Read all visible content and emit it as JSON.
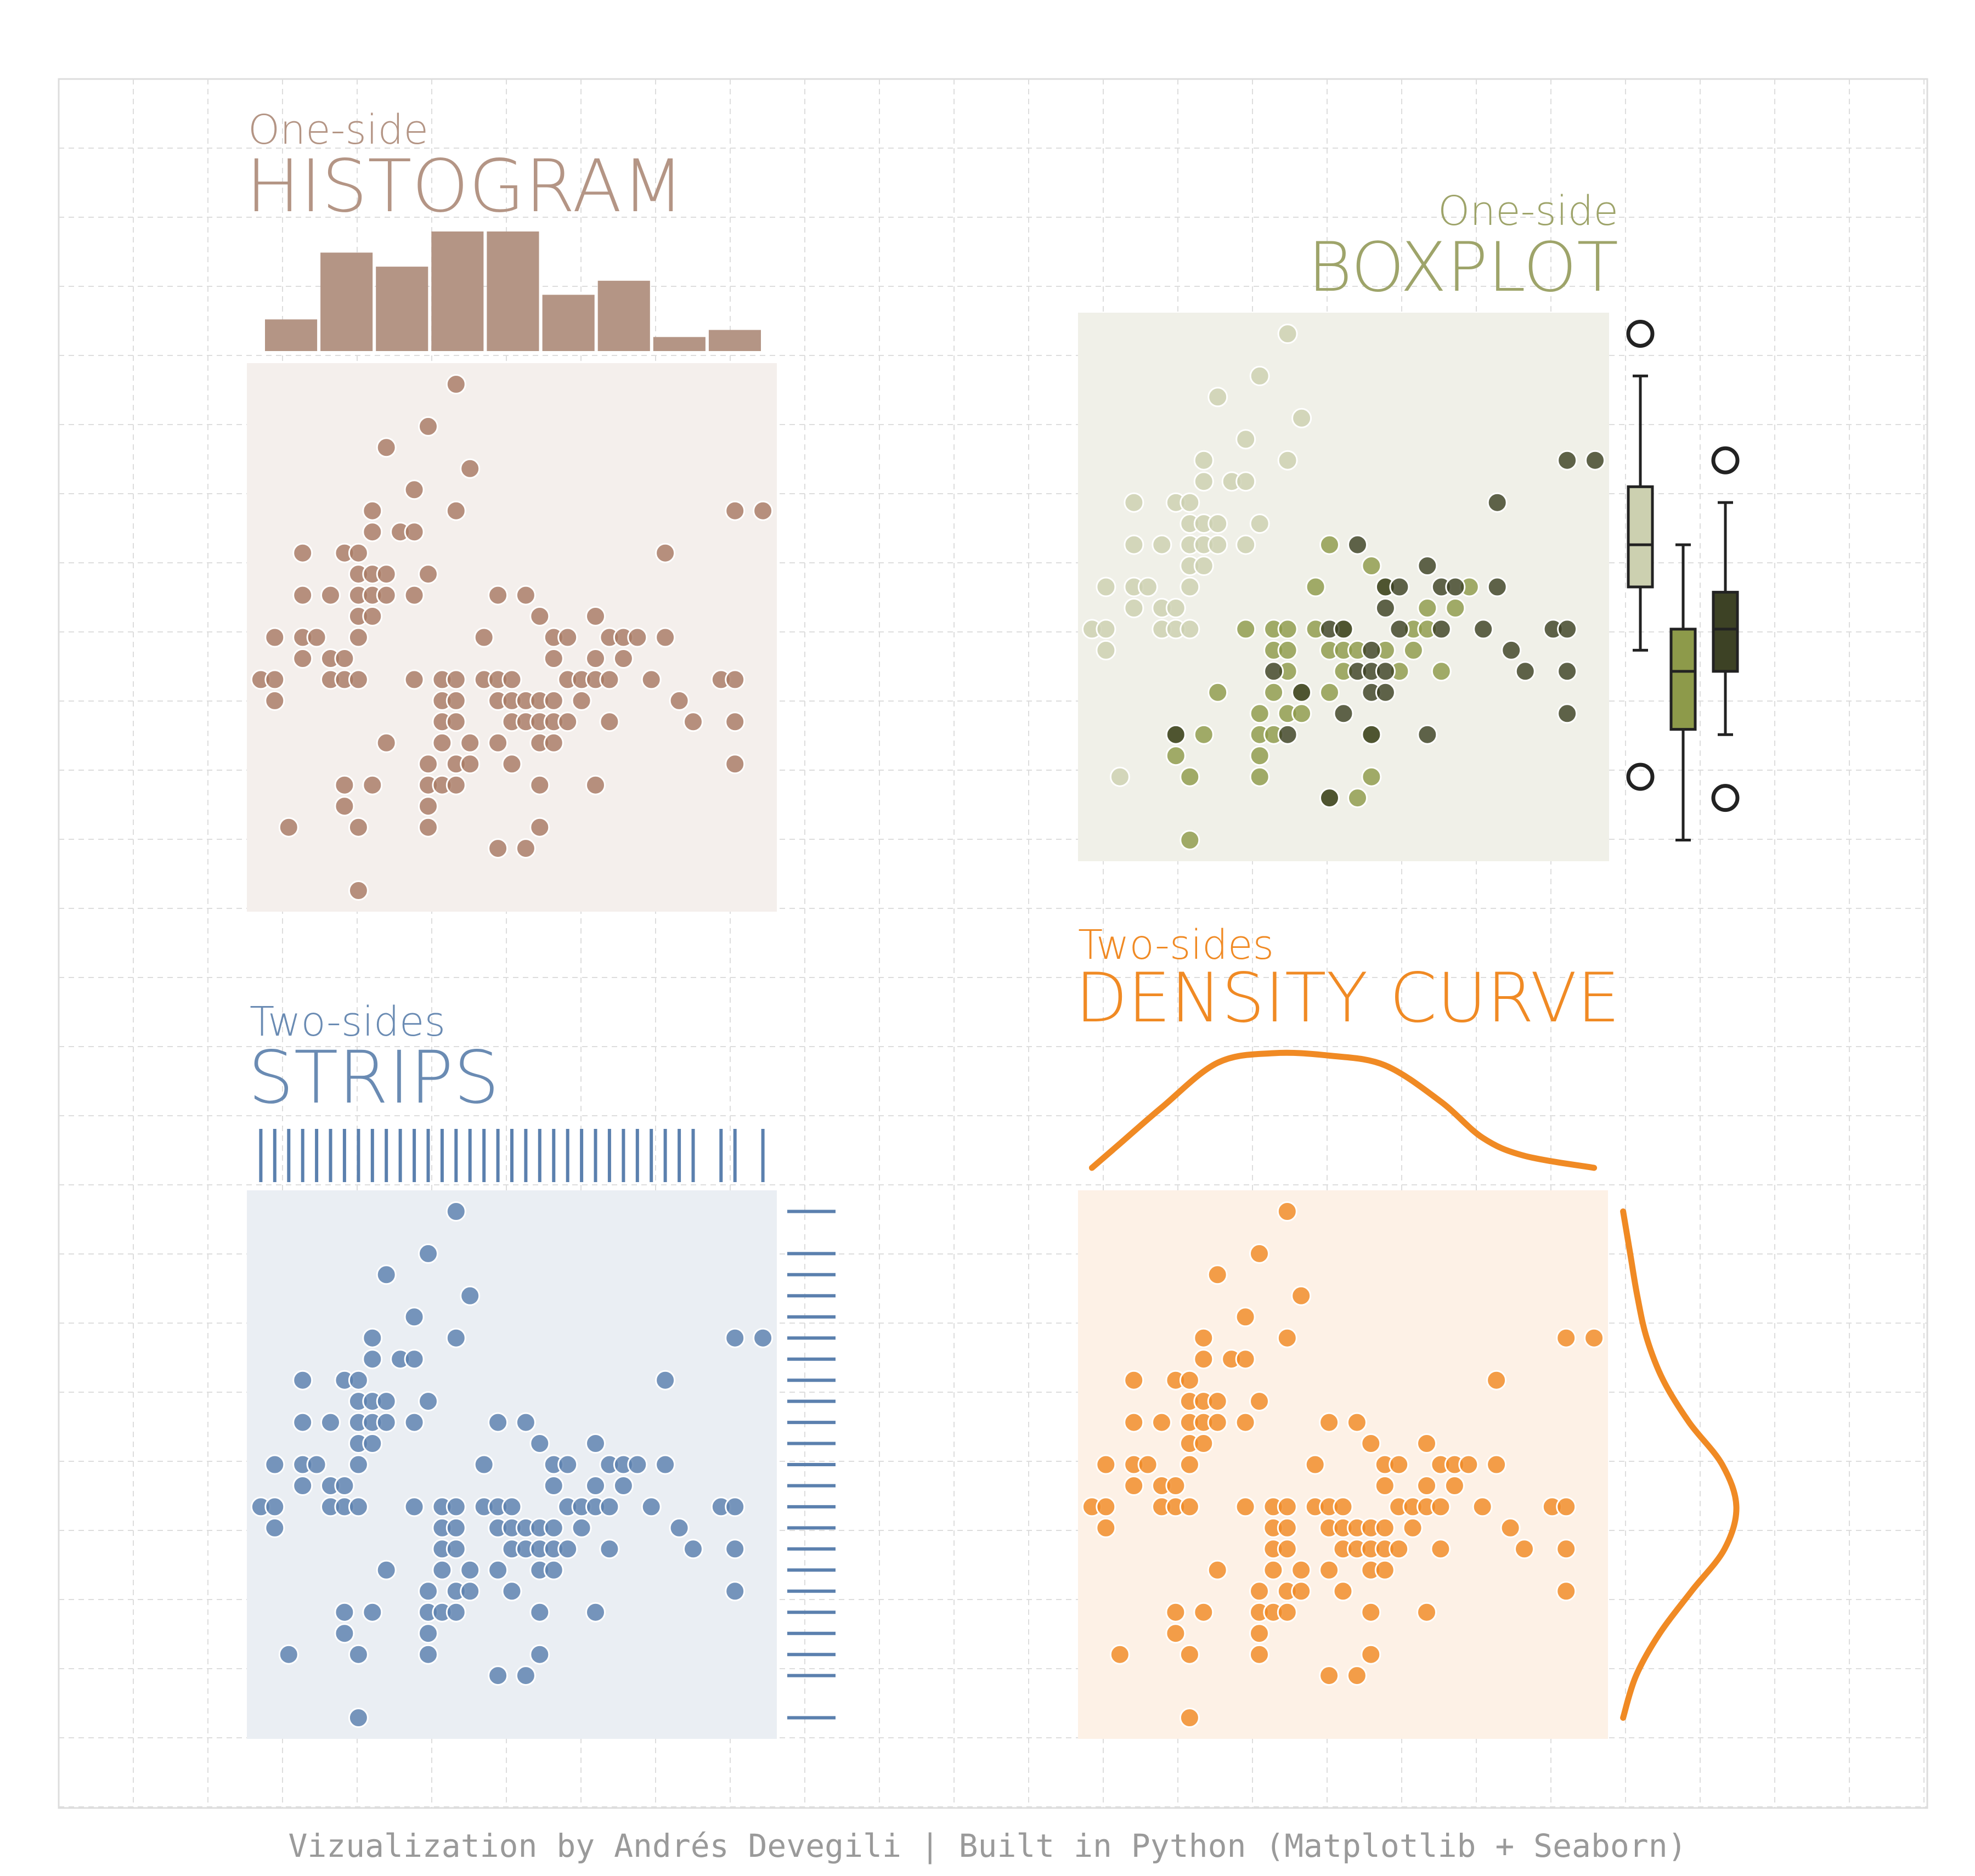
{
  "footer": "Vizualization by Andrés Devegili | Built in Python (Matplotlib + Seaborn)",
  "palette": {
    "histogram": "#b49585",
    "histogram_dot": "#a87a64",
    "histogram_bg": "#f4efec",
    "boxplot_title": "#9ea46a",
    "boxplot_bg": "#f0f0e8",
    "group_light": "#ccd0b0",
    "group_mid": "#8d9a4a",
    "group_dark": "#3d4225",
    "strips": "#5b80ae",
    "strips_dot": "#5b80ae",
    "strips_bg": "#eaeef3",
    "density": "#f08a24",
    "density_bg": "#fdf1e6",
    "grid": "#dddddd"
  },
  "panels": {
    "histogram": {
      "subtitle": "One-side",
      "title": "HISTOGRAM"
    },
    "boxplot": {
      "subtitle": "One-side",
      "title": "BOXPLOT"
    },
    "strips": {
      "subtitle": "Two-sides",
      "title": "STRIPS"
    },
    "density": {
      "subtitle": "Two-sides",
      "title": "DENSITY CURVE"
    }
  },
  "chart_data": [
    {
      "type": "scatter",
      "panel": "histogram",
      "marginal": "histogram-top",
      "xlim": [
        4.2,
        8.0
      ],
      "ylim": [
        1.9,
        4.5
      ],
      "hist_bins": 9,
      "hist_counts": [
        9,
        28,
        24,
        34,
        34,
        16,
        20,
        4,
        6
      ],
      "points": [
        [
          4.3,
          3.0
        ],
        [
          4.4,
          2.9
        ],
        [
          4.4,
          3.0
        ],
        [
          4.4,
          3.2
        ],
        [
          4.5,
          2.3
        ],
        [
          4.6,
          3.1
        ],
        [
          4.6,
          3.2
        ],
        [
          4.6,
          3.4
        ],
        [
          4.6,
          3.6
        ],
        [
          4.7,
          3.2
        ],
        [
          4.8,
          3.0
        ],
        [
          4.8,
          3.1
        ],
        [
          4.8,
          3.4
        ],
        [
          4.9,
          2.4
        ],
        [
          4.9,
          2.5
        ],
        [
          4.9,
          3.0
        ],
        [
          4.9,
          3.1
        ],
        [
          4.9,
          3.6
        ],
        [
          5.0,
          2.0
        ],
        [
          5.0,
          2.3
        ],
        [
          5.0,
          3.0
        ],
        [
          5.0,
          3.2
        ],
        [
          5.0,
          3.3
        ],
        [
          5.0,
          3.4
        ],
        [
          5.0,
          3.5
        ],
        [
          5.0,
          3.6
        ],
        [
          5.1,
          2.5
        ],
        [
          5.1,
          3.3
        ],
        [
          5.1,
          3.4
        ],
        [
          5.1,
          3.5
        ],
        [
          5.1,
          3.7
        ],
        [
          5.1,
          3.8
        ],
        [
          5.2,
          2.7
        ],
        [
          5.2,
          3.4
        ],
        [
          5.2,
          3.5
        ],
        [
          5.2,
          4.1
        ],
        [
          5.3,
          3.7
        ],
        [
          5.4,
          3.0
        ],
        [
          5.4,
          3.4
        ],
        [
          5.4,
          3.7
        ],
        [
          5.4,
          3.9
        ],
        [
          5.5,
          2.3
        ],
        [
          5.5,
          2.4
        ],
        [
          5.5,
          2.5
        ],
        [
          5.5,
          2.6
        ],
        [
          5.5,
          3.5
        ],
        [
          5.5,
          4.2
        ],
        [
          5.6,
          2.5
        ],
        [
          5.6,
          2.7
        ],
        [
          5.6,
          2.8
        ],
        [
          5.6,
          2.9
        ],
        [
          5.6,
          3.0
        ],
        [
          5.7,
          2.5
        ],
        [
          5.7,
          2.6
        ],
        [
          5.7,
          2.8
        ],
        [
          5.7,
          2.9
        ],
        [
          5.7,
          3.0
        ],
        [
          5.7,
          3.8
        ],
        [
          5.7,
          4.4
        ],
        [
          5.8,
          2.6
        ],
        [
          5.8,
          2.7
        ],
        [
          5.8,
          4.0
        ],
        [
          5.9,
          3.0
        ],
        [
          5.9,
          3.2
        ],
        [
          6.0,
          2.2
        ],
        [
          6.0,
          2.7
        ],
        [
          6.0,
          2.9
        ],
        [
          6.0,
          3.0
        ],
        [
          6.0,
          3.4
        ],
        [
          6.1,
          2.6
        ],
        [
          6.1,
          2.8
        ],
        [
          6.1,
          2.9
        ],
        [
          6.1,
          3.0
        ],
        [
          6.2,
          2.2
        ],
        [
          6.2,
          2.8
        ],
        [
          6.2,
          2.9
        ],
        [
          6.2,
          3.4
        ],
        [
          6.3,
          2.3
        ],
        [
          6.3,
          2.5
        ],
        [
          6.3,
          2.7
        ],
        [
          6.3,
          2.8
        ],
        [
          6.3,
          2.9
        ],
        [
          6.3,
          3.3
        ],
        [
          6.4,
          2.7
        ],
        [
          6.4,
          2.8
        ],
        [
          6.4,
          2.9
        ],
        [
          6.4,
          3.1
        ],
        [
          6.4,
          3.2
        ],
        [
          6.5,
          2.8
        ],
        [
          6.5,
          3.0
        ],
        [
          6.5,
          3.2
        ],
        [
          6.6,
          2.9
        ],
        [
          6.6,
          3.0
        ],
        [
          6.7,
          2.5
        ],
        [
          6.7,
          3.0
        ],
        [
          6.7,
          3.1
        ],
        [
          6.7,
          3.3
        ],
        [
          6.8,
          2.8
        ],
        [
          6.8,
          3.0
        ],
        [
          6.8,
          3.2
        ],
        [
          6.9,
          3.1
        ],
        [
          6.9,
          3.2
        ],
        [
          7.0,
          3.2
        ],
        [
          7.1,
          3.0
        ],
        [
          7.2,
          3.2
        ],
        [
          7.2,
          3.6
        ],
        [
          7.3,
          2.9
        ],
        [
          7.4,
          2.8
        ],
        [
          7.6,
          3.0
        ],
        [
          7.7,
          2.6
        ],
        [
          7.7,
          2.8
        ],
        [
          7.7,
          3.0
        ],
        [
          7.7,
          3.8
        ],
        [
          7.9,
          3.8
        ]
      ]
    },
    {
      "type": "scatter",
      "panel": "boxplot",
      "marginal": "boxplot-right",
      "xlim": [
        4.2,
        8.0
      ],
      "ylim": [
        1.9,
        4.5
      ],
      "groups": [
        {
          "points": [
            [
              4.3,
              3.0
            ],
            [
              4.4,
              2.9
            ],
            [
              4.4,
              3.0
            ],
            [
              4.4,
              3.2
            ],
            [
              4.5,
              2.3
            ],
            [
              4.6,
              3.1
            ],
            [
              4.6,
              3.2
            ],
            [
              4.6,
              3.4
            ],
            [
              4.6,
              3.6
            ],
            [
              4.7,
              3.2
            ],
            [
              4.8,
              3.0
            ],
            [
              4.8,
              3.1
            ],
            [
              4.8,
              3.4
            ],
            [
              4.9,
              3.0
            ],
            [
              4.9,
              3.1
            ],
            [
              4.9,
              3.6
            ],
            [
              5.0,
              3.0
            ],
            [
              5.0,
              3.2
            ],
            [
              5.0,
              3.3
            ],
            [
              5.0,
              3.4
            ],
            [
              5.0,
              3.5
            ],
            [
              5.0,
              3.6
            ],
            [
              5.1,
              3.3
            ],
            [
              5.1,
              3.4
            ],
            [
              5.1,
              3.5
            ],
            [
              5.1,
              3.7
            ],
            [
              5.1,
              3.8
            ],
            [
              5.2,
              3.4
            ],
            [
              5.2,
              3.5
            ],
            [
              5.2,
              4.1
            ],
            [
              5.3,
              3.7
            ],
            [
              5.4,
              3.4
            ],
            [
              5.4,
              3.7
            ],
            [
              5.4,
              3.9
            ],
            [
              5.5,
              3.5
            ],
            [
              5.5,
              4.2
            ],
            [
              5.7,
              3.8
            ],
            [
              5.7,
              4.4
            ],
            [
              5.8,
              4.0
            ]
          ]
        },
        {
          "points": [
            [
              4.9,
              2.4
            ],
            [
              4.9,
              2.5
            ],
            [
              5.0,
              2.0
            ],
            [
              5.0,
              2.3
            ],
            [
              5.1,
              2.5
            ],
            [
              5.2,
              2.7
            ],
            [
              5.4,
              3.0
            ],
            [
              5.5,
              2.3
            ],
            [
              5.5,
              2.4
            ],
            [
              5.5,
              2.5
            ],
            [
              5.5,
              2.6
            ],
            [
              5.6,
              2.5
            ],
            [
              5.6,
              2.7
            ],
            [
              5.6,
              2.9
            ],
            [
              5.6,
              3.0
            ],
            [
              5.7,
              2.6
            ],
            [
              5.7,
              2.8
            ],
            [
              5.7,
              2.9
            ],
            [
              5.7,
              3.0
            ],
            [
              5.8,
              2.6
            ],
            [
              5.8,
              2.7
            ],
            [
              5.9,
              3.0
            ],
            [
              5.9,
              3.2
            ],
            [
              6.0,
              2.2
            ],
            [
              6.0,
              2.7
            ],
            [
              6.0,
              2.9
            ],
            [
              6.0,
              3.4
            ],
            [
              6.1,
              2.8
            ],
            [
              6.1,
              2.9
            ],
            [
              6.1,
              3.0
            ],
            [
              6.2,
              2.2
            ],
            [
              6.2,
              2.9
            ],
            [
              6.3,
              2.3
            ],
            [
              6.3,
              2.5
            ],
            [
              6.3,
              3.3
            ],
            [
              6.4,
              2.9
            ],
            [
              6.4,
              3.2
            ],
            [
              6.5,
              2.8
            ],
            [
              6.6,
              2.9
            ],
            [
              6.6,
              3.0
            ],
            [
              6.7,
              3.0
            ],
            [
              6.7,
              3.1
            ],
            [
              6.8,
              2.8
            ],
            [
              6.9,
              3.1
            ],
            [
              7.0,
              3.2
            ]
          ]
        },
        {
          "points": [
            [
              4.9,
              2.5
            ],
            [
              5.6,
              2.8
            ],
            [
              5.7,
              2.5
            ],
            [
              5.8,
              2.7
            ],
            [
              6.0,
              3.0
            ],
            [
              6.0,
              2.2
            ],
            [
              6.1,
              2.6
            ],
            [
              6.1,
              3.0
            ],
            [
              6.2,
              2.8
            ],
            [
              6.2,
              3.4
            ],
            [
              6.3,
              2.7
            ],
            [
              6.3,
              2.8
            ],
            [
              6.3,
              2.9
            ],
            [
              6.3,
              2.5
            ],
            [
              6.4,
              2.7
            ],
            [
              6.4,
              2.8
            ],
            [
              6.4,
              3.1
            ],
            [
              6.4,
              3.2
            ],
            [
              6.5,
              3.0
            ],
            [
              6.5,
              3.2
            ],
            [
              6.7,
              2.5
            ],
            [
              6.7,
              3.3
            ],
            [
              6.8,
              3.0
            ],
            [
              6.8,
              3.2
            ],
            [
              6.9,
              3.2
            ],
            [
              7.1,
              3.0
            ],
            [
              7.2,
              3.2
            ],
            [
              7.2,
              3.6
            ],
            [
              7.3,
              2.9
            ],
            [
              7.4,
              2.8
            ],
            [
              7.6,
              3.0
            ],
            [
              7.7,
              2.6
            ],
            [
              7.7,
              2.8
            ],
            [
              7.7,
              3.0
            ],
            [
              7.7,
              3.8
            ],
            [
              7.9,
              3.8
            ]
          ]
        }
      ],
      "boxes": [
        {
          "q1": 3.2,
          "median": 3.4,
          "q3": 3.675,
          "whisker_low": 2.9,
          "whisker_high": 4.2,
          "outliers": [
            4.4,
            2.3
          ]
        },
        {
          "q1": 2.525,
          "median": 2.8,
          "q3": 3.0,
          "whisker_low": 2.0,
          "whisker_high": 3.4,
          "outliers": []
        },
        {
          "q1": 2.8,
          "median": 3.0,
          "q3": 3.175,
          "whisker_low": 2.5,
          "whisker_high": 3.6,
          "outliers": [
            3.8,
            2.2
          ]
        }
      ]
    },
    {
      "type": "scatter",
      "panel": "strips",
      "marginal": "rug-top-and-right",
      "xlim": [
        4.2,
        8.0
      ],
      "ylim": [
        1.9,
        4.5
      ],
      "points": "same as histogram panel"
    },
    {
      "type": "scatter",
      "panel": "density",
      "marginal": "kde-top-and-right",
      "xlim": [
        4.2,
        8.0
      ],
      "ylim": [
        1.9,
        4.5
      ],
      "kde_x": [
        [
          4.3,
          0.05
        ],
        [
          4.5,
          0.25
        ],
        [
          4.8,
          0.55
        ],
        [
          5.2,
          0.92
        ],
        [
          5.6,
          1.0
        ],
        [
          6.0,
          0.98
        ],
        [
          6.4,
          0.9
        ],
        [
          6.8,
          0.6
        ],
        [
          7.1,
          0.3
        ],
        [
          7.4,
          0.15
        ],
        [
          7.9,
          0.05
        ]
      ],
      "kde_y": [
        [
          2.0,
          0.04
        ],
        [
          2.2,
          0.15
        ],
        [
          2.4,
          0.35
        ],
        [
          2.6,
          0.62
        ],
        [
          2.8,
          0.9
        ],
        [
          3.0,
          1.0
        ],
        [
          3.2,
          0.88
        ],
        [
          3.4,
          0.6
        ],
        [
          3.6,
          0.38
        ],
        [
          3.8,
          0.24
        ],
        [
          4.0,
          0.16
        ],
        [
          4.2,
          0.1
        ],
        [
          4.4,
          0.04
        ]
      ],
      "points": "same as histogram panel"
    }
  ]
}
